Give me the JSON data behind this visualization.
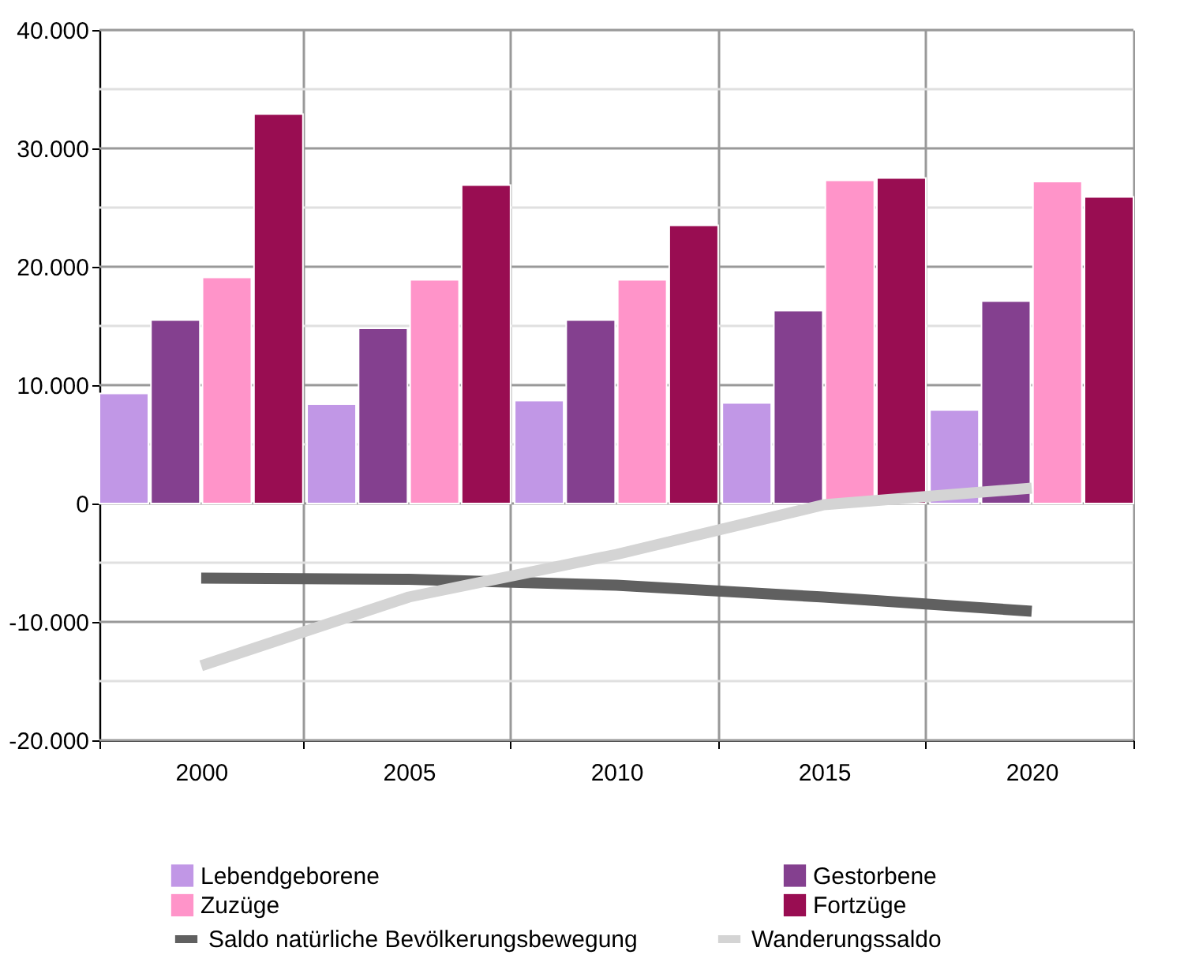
{
  "chart_data": {
    "type": "bar",
    "categories": [
      "2000",
      "2005",
      "2010",
      "2015",
      "2020"
    ],
    "series": [
      {
        "name": "Lebendgeborene",
        "color": "#c197e6",
        "values": [
          9300,
          8400,
          8700,
          8500,
          7900
        ]
      },
      {
        "name": "Gestorbene",
        "color": "#84408f",
        "values": [
          15500,
          14800,
          15500,
          16300,
          17100
        ]
      },
      {
        "name": "Zuzüge",
        "color": "#ff94c9",
        "values": [
          19100,
          18900,
          18900,
          27300,
          27200
        ]
      },
      {
        "name": "Fortzüge",
        "color": "#990d52",
        "values": [
          32900,
          26900,
          23500,
          27500,
          25900
        ]
      },
      {
        "name": "Saldo natürliche Bevölkerungsbewegung",
        "type": "line",
        "color": "#606060",
        "values": [
          -6300,
          -6400,
          -6900,
          -7900,
          -9100
        ]
      },
      {
        "name": "Wanderungssaldo",
        "type": "line",
        "color": "#d4d4d4",
        "values": [
          -13700,
          -7900,
          -4300,
          -100,
          1300
        ]
      }
    ],
    "ylim": [
      -20000,
      40000
    ],
    "yticks": [
      {
        "value": -20000,
        "label": "-20.000"
      },
      {
        "value": -15000,
        "label": null
      },
      {
        "value": -10000,
        "label": "-10.000"
      },
      {
        "value": -5000,
        "label": null
      },
      {
        "value": 0,
        "label": "0"
      },
      {
        "value": 5000,
        "label": null
      },
      {
        "value": 10000,
        "label": "10.000"
      },
      {
        "value": 15000,
        "label": null
      },
      {
        "value": 20000,
        "label": "20.000"
      },
      {
        "value": 25000,
        "label": null
      },
      {
        "value": 30000,
        "label": "30.000"
      },
      {
        "value": 35000,
        "label": null
      },
      {
        "value": 40000,
        "label": "40.000"
      }
    ],
    "grid": true,
    "legend": "bottom"
  }
}
